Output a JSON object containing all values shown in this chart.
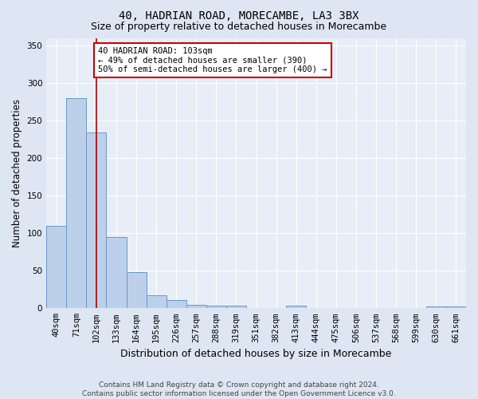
{
  "title1": "40, HADRIAN ROAD, MORECAMBE, LA3 3BX",
  "title2": "Size of property relative to detached houses in Morecambe",
  "xlabel": "Distribution of detached houses by size in Morecambe",
  "ylabel": "Number of detached properties",
  "categories": [
    "40sqm",
    "71sqm",
    "102sqm",
    "133sqm",
    "164sqm",
    "195sqm",
    "226sqm",
    "257sqm",
    "288sqm",
    "319sqm",
    "351sqm",
    "382sqm",
    "413sqm",
    "444sqm",
    "475sqm",
    "506sqm",
    "537sqm",
    "568sqm",
    "599sqm",
    "630sqm",
    "661sqm"
  ],
  "values": [
    110,
    280,
    234,
    95,
    48,
    17,
    11,
    5,
    4,
    3,
    0,
    0,
    3,
    0,
    0,
    0,
    0,
    0,
    0,
    2,
    2
  ],
  "bar_color": "#bdd0e9",
  "bar_edge_color": "#6699cc",
  "red_line_index": 2,
  "red_line_color": "#aa0000",
  "ylim": [
    0,
    360
  ],
  "yticks": [
    0,
    50,
    100,
    150,
    200,
    250,
    300,
    350
  ],
  "bg_color": "#dde6f2",
  "plot_bg_color": "#e8eef8",
  "grid_color": "#ffffff",
  "annotation_text": "40 HADRIAN ROAD: 103sqm\n← 49% of detached houses are smaller (390)\n50% of semi-detached houses are larger (400) →",
  "annotation_box_color": "#ffffff",
  "annotation_box_edge": "#cc0000",
  "footer": "Contains HM Land Registry data © Crown copyright and database right 2024.\nContains public sector information licensed under the Open Government Licence v3.0.",
  "title1_fontsize": 10,
  "title2_fontsize": 9,
  "xlabel_fontsize": 9,
  "ylabel_fontsize": 8.5,
  "tick_fontsize": 7.5,
  "annotation_fontsize": 7.5,
  "footer_fontsize": 6.5
}
